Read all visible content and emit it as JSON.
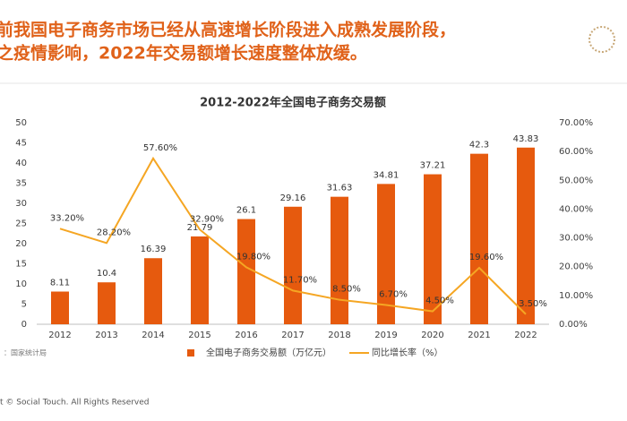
{
  "header": {
    "line1": "前我国电子商务市场已经从高速增长阶段进入成熟发展阶段，",
    "line2": "之疫情影响，2022年交易额增长速度整体放缓。"
  },
  "source": "：国家统计局",
  "footer": "t © Social Touch. All Rights Reserved",
  "chart_data": {
    "type": "bar",
    "title": "2012-2022年全国电子商务交易额",
    "categories": [
      "2012",
      "2013",
      "2014",
      "2015",
      "2016",
      "2017",
      "2018",
      "2019",
      "2020",
      "2021",
      "2022"
    ],
    "series": [
      {
        "name": "全国电子商务交易额（万亿元）",
        "type": "bar",
        "color": "#e65a0e",
        "values": [
          8.11,
          10.4,
          16.39,
          21.79,
          26.1,
          29.16,
          31.63,
          34.81,
          37.21,
          42.3,
          43.83
        ]
      },
      {
        "name": "同比增长率（%）",
        "type": "line",
        "axis": "y2",
        "color": "#f5a623",
        "values": [
          33.2,
          28.2,
          57.6,
          32.9,
          19.8,
          11.7,
          8.5,
          6.7,
          4.5,
          19.6,
          3.5
        ],
        "value_labels": [
          "33.20%",
          "28.20%",
          "57.60%",
          "32.90%",
          "19.80%",
          "11.70%",
          "8.50%",
          "6.70%",
          "4.50%",
          "19.60%",
          "3.50%"
        ]
      }
    ],
    "ylim": [
      0,
      50
    ],
    "yticks": [
      0,
      5,
      10,
      15,
      20,
      25,
      30,
      35,
      40,
      45,
      50
    ],
    "y2lim": [
      0,
      70
    ],
    "y2ticks": [
      {
        "value": 0,
        "label": "0.00%"
      },
      {
        "value": 10,
        "label": "10.00%"
      },
      {
        "value": 20,
        "label": "20.00%"
      },
      {
        "value": 30,
        "label": "30.00%"
      },
      {
        "value": 40,
        "label": "40.00%"
      },
      {
        "value": 50,
        "label": "50.00%"
      },
      {
        "value": 60,
        "label": "60.00%"
      },
      {
        "value": 70,
        "label": "70.00%"
      }
    ],
    "grid": false,
    "legend": "bottom"
  }
}
